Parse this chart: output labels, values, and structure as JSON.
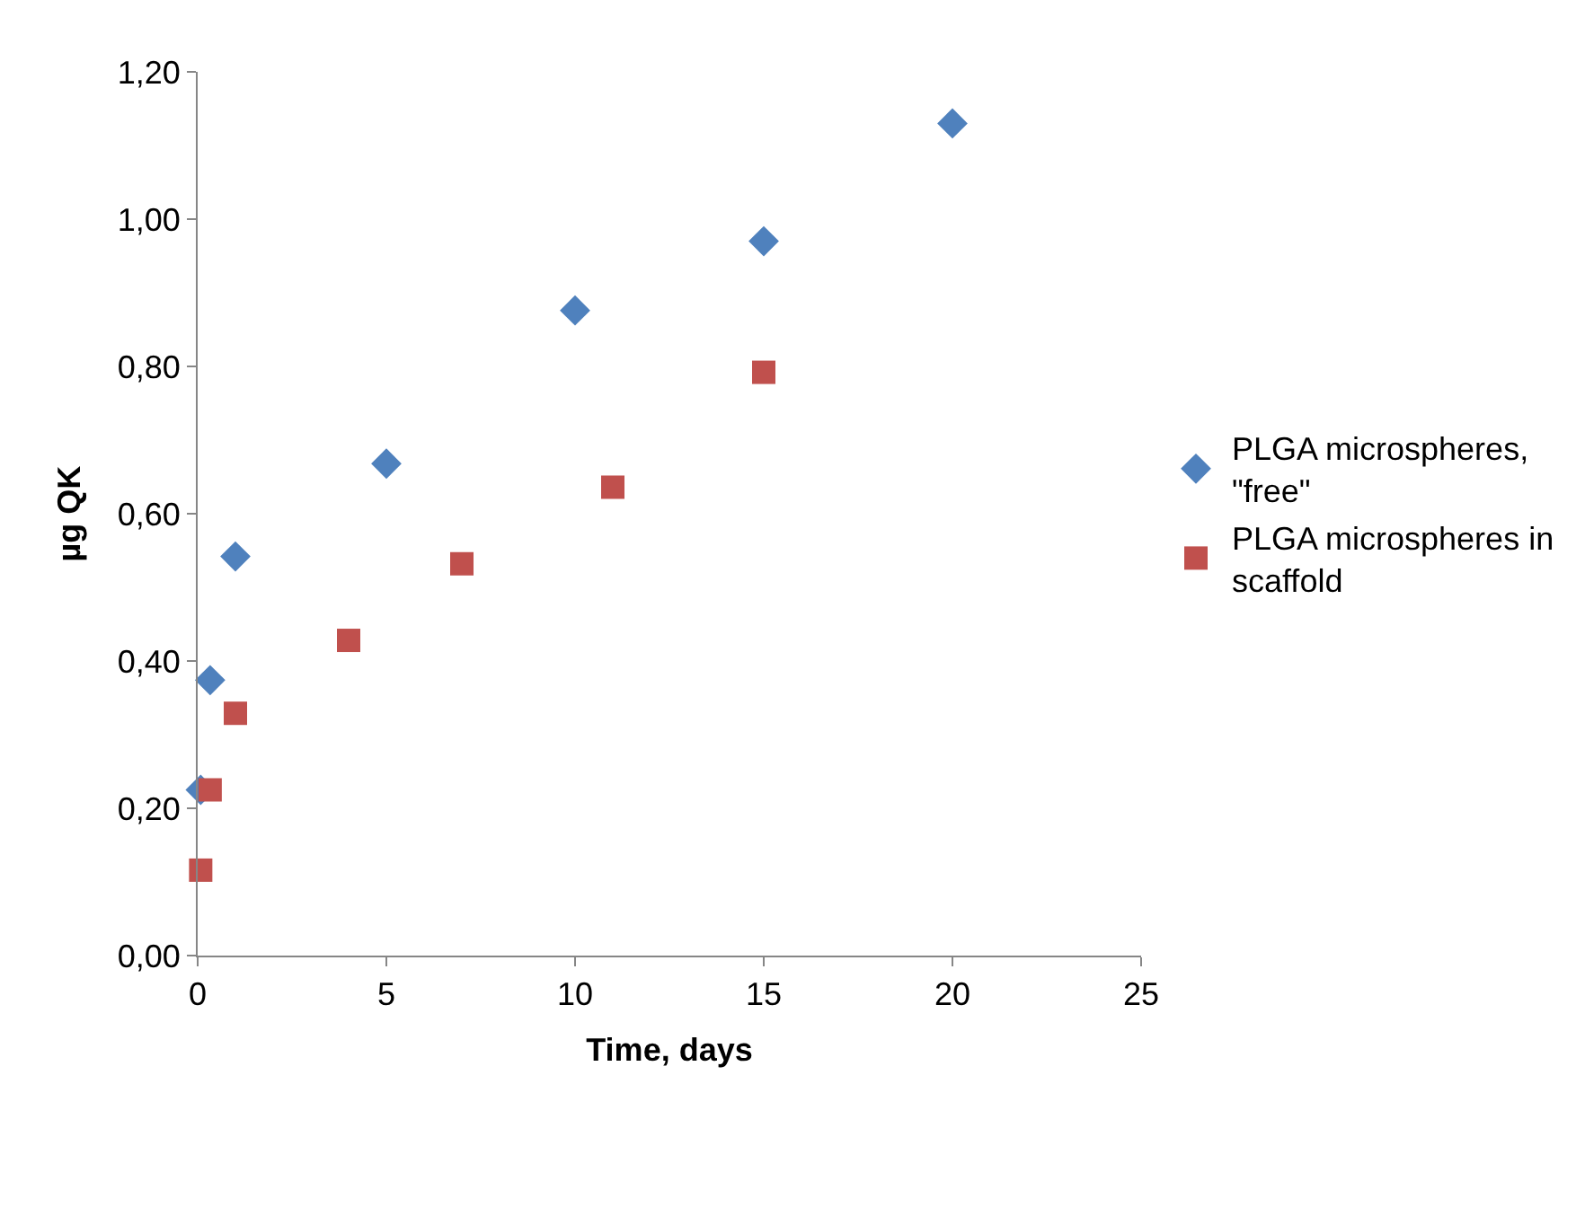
{
  "chart_data": {
    "type": "scatter",
    "xlabel": "Time, days",
    "ylabel": "µg QK",
    "xlim": [
      0,
      25
    ],
    "xticks": [
      0,
      5,
      10,
      15,
      20,
      25
    ],
    "ylim": [
      0,
      1.2
    ],
    "yticks": [
      {
        "value": 0,
        "label": "0,00"
      },
      {
        "value": 0.2,
        "label": "0,20"
      },
      {
        "value": 0.4,
        "label": "0,40"
      },
      {
        "value": 0.6,
        "label": "0,60"
      },
      {
        "value": 0.8,
        "label": "0,80"
      },
      {
        "value": 1.0,
        "label": "1,00"
      },
      {
        "value": 1.2,
        "label": "1,20"
      }
    ],
    "legend": "right",
    "series": [
      {
        "name": "PLGA microspheres, \"free\"",
        "color": "#4f81bd",
        "marker": "diamond",
        "x": [
          0.08,
          0.33,
          1,
          5,
          10,
          15,
          20
        ],
        "values": [
          0.225,
          0.374,
          0.542,
          0.668,
          0.876,
          0.97,
          1.13
        ]
      },
      {
        "name": "PLGA microspheres in scaffold",
        "color": "#c0504d",
        "marker": "square",
        "x": [
          0.08,
          0.33,
          1,
          4,
          7,
          11,
          15
        ],
        "values": [
          0.116,
          0.225,
          0.329,
          0.428,
          0.532,
          0.636,
          0.792
        ]
      }
    ]
  }
}
